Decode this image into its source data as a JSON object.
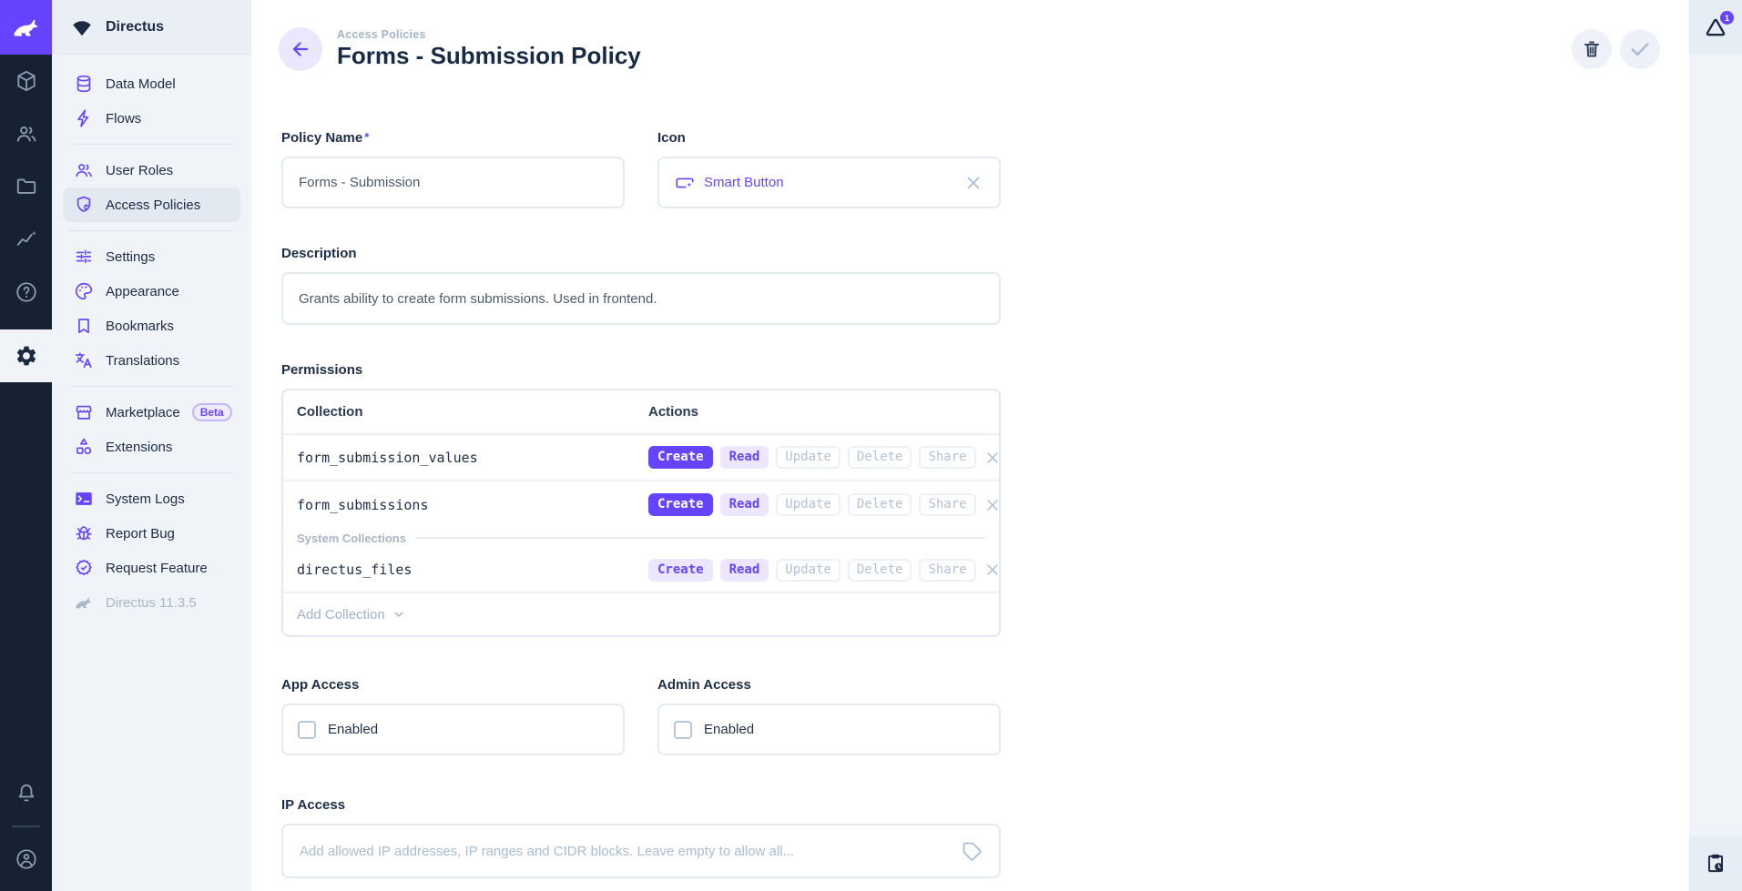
{
  "colors": {
    "accent": "#6644ff",
    "module_bar_bg": "#162131",
    "sidebar_bg": "#f0f4f9",
    "text_dark": "#1b2a42",
    "muted": "#a9b8c8"
  },
  "project": {
    "name": "Directus",
    "version": "Directus 11.3.5"
  },
  "module_bar": {
    "modules": [
      "content",
      "user-directory",
      "file-library",
      "insights",
      "documentation",
      "settings"
    ],
    "active_module": "settings",
    "bottom": [
      "notifications",
      "account"
    ]
  },
  "sidebar": {
    "items": [
      {
        "label": "Data Model",
        "icon": "database-icon"
      },
      {
        "label": "Flows",
        "icon": "bolt-icon"
      },
      {
        "label": "User Roles",
        "icon": "people-icon"
      },
      {
        "label": "Access Policies",
        "icon": "shield-badge-icon",
        "active": true
      },
      {
        "label": "Settings",
        "icon": "tune-icon"
      },
      {
        "label": "Appearance",
        "icon": "palette-icon"
      },
      {
        "label": "Bookmarks",
        "icon": "bookmark-icon"
      },
      {
        "label": "Translations",
        "icon": "translate-icon"
      },
      {
        "label": "Marketplace",
        "icon": "storefront-icon",
        "badge": "Beta"
      },
      {
        "label": "Extensions",
        "icon": "category-icon"
      },
      {
        "label": "System Logs",
        "icon": "terminal-icon"
      },
      {
        "label": "Report Bug",
        "icon": "bug-icon"
      },
      {
        "label": "Request Feature",
        "icon": "seal-check-icon"
      },
      {
        "label": "Directus 11.3.5",
        "icon": "rabbit-icon",
        "muted": true
      }
    ]
  },
  "header": {
    "breadcrumb": "Access Policies",
    "title": "Forms - Submission Policy",
    "actions": [
      "delete",
      "save"
    ]
  },
  "right_bar": {
    "notification_count": "1"
  },
  "form": {
    "policy_name": {
      "label": "Policy Name",
      "required": true,
      "value": "Forms - Submission"
    },
    "icon_field": {
      "label": "Icon",
      "value": "Smart Button"
    },
    "description": {
      "label": "Description",
      "value": "Grants ability to create form submissions. Used in frontend."
    },
    "permissions": {
      "label": "Permissions",
      "columns": {
        "collection": "Collection",
        "actions": "Actions"
      },
      "rows": [
        {
          "collection": "form_submission_values",
          "actions": [
            {
              "label": "Create",
              "state": "full"
            },
            {
              "label": "Read",
              "state": "partial"
            },
            {
              "label": "Update",
              "state": "none"
            },
            {
              "label": "Delete",
              "state": "none"
            },
            {
              "label": "Share",
              "state": "none"
            }
          ]
        },
        {
          "collection": "form_submissions",
          "actions": [
            {
              "label": "Create",
              "state": "full"
            },
            {
              "label": "Read",
              "state": "partial"
            },
            {
              "label": "Update",
              "state": "none"
            },
            {
              "label": "Delete",
              "state": "none"
            },
            {
              "label": "Share",
              "state": "none"
            }
          ]
        },
        {
          "collection": "directus_files",
          "group": "System Collections",
          "actions": [
            {
              "label": "Create",
              "state": "partial"
            },
            {
              "label": "Read",
              "state": "partial"
            },
            {
              "label": "Update",
              "state": "none"
            },
            {
              "label": "Delete",
              "state": "none"
            },
            {
              "label": "Share",
              "state": "none"
            }
          ]
        }
      ],
      "group_divider": "System Collections",
      "add_label": "Add Collection"
    },
    "app_access": {
      "label": "App Access",
      "checkbox_label": "Enabled",
      "checked": false
    },
    "admin_access": {
      "label": "Admin Access",
      "checkbox_label": "Enabled",
      "checked": false
    },
    "ip_access": {
      "label": "IP Access",
      "placeholder": "Add allowed IP addresses, IP ranges and CIDR blocks. Leave empty to allow all..."
    }
  }
}
